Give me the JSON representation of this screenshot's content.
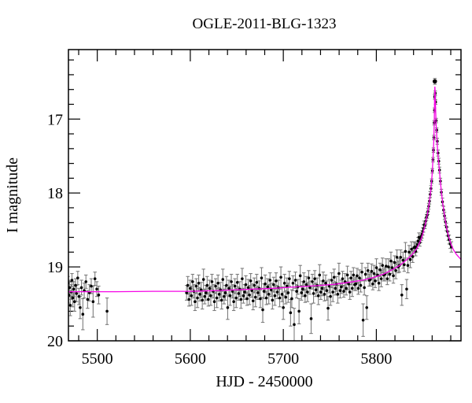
{
  "figure": {
    "background": "#ffffff",
    "title": "OGLE-2011-BLG-1323"
  },
  "chart_data": {
    "type": "scatter",
    "title": "OGLE-2011-BLG-1323",
    "xlabel": "HJD - 2450000",
    "ylabel": "I magnitude",
    "xlim": [
      5469,
      5891
    ],
    "ylim": [
      20.0,
      16.06
    ],
    "y_axis_inverted": true,
    "grid": false,
    "legend": "none",
    "x_major_ticks": [
      5500,
      5600,
      5700,
      5800
    ],
    "x_minor_step": 20,
    "y_major_ticks": [
      17,
      18,
      19,
      20
    ],
    "y_minor_step": 0.2,
    "colors": {
      "frame": "#000000",
      "data_points": "#000000",
      "error_bars": "#7d7d7d",
      "model_curve": "#f606e6"
    },
    "peak": {
      "t": 5862.9,
      "mag": 16.49
    },
    "baseline_mag": 19.33,
    "model_curve": [
      [
        5469,
        19.335
      ],
      [
        5520,
        19.335
      ],
      [
        5560,
        19.33
      ],
      [
        5600,
        19.33
      ],
      [
        5630,
        19.32
      ],
      [
        5660,
        19.305
      ],
      [
        5690,
        19.29
      ],
      [
        5715,
        19.27
      ],
      [
        5735,
        19.255
      ],
      [
        5755,
        19.235
      ],
      [
        5770,
        19.21
      ],
      [
        5785,
        19.18
      ],
      [
        5798,
        19.14
      ],
      [
        5808,
        19.095
      ],
      [
        5817,
        19.04
      ],
      [
        5825,
        18.98
      ],
      [
        5832,
        18.91
      ],
      [
        5838,
        18.84
      ],
      [
        5843,
        18.76
      ],
      [
        5847,
        18.66
      ],
      [
        5850,
        18.55
      ],
      [
        5853,
        18.4
      ],
      [
        5855,
        18.28
      ],
      [
        5857,
        18.12
      ],
      [
        5858.5,
        17.97
      ],
      [
        5860,
        17.75
      ],
      [
        5861,
        17.52
      ],
      [
        5861.8,
        17.28
      ],
      [
        5862.3,
        17.0
      ],
      [
        5862.6,
        16.75
      ],
      [
        5862.9,
        16.56
      ],
      [
        5863.2,
        16.62
      ],
      [
        5863.6,
        16.82
      ],
      [
        5864.2,
        17.05
      ],
      [
        5865,
        17.25
      ],
      [
        5866,
        17.45
      ],
      [
        5867.5,
        17.65
      ],
      [
        5869,
        17.87
      ],
      [
        5870.5,
        18.05
      ],
      [
        5872,
        18.19
      ],
      [
        5874,
        18.36
      ],
      [
        5876,
        18.5
      ],
      [
        5878,
        18.6
      ],
      [
        5880.5,
        18.7
      ],
      [
        5883,
        18.77
      ],
      [
        5886,
        18.83
      ],
      [
        5891,
        18.9
      ]
    ],
    "points": [
      [
        5467.0,
        19.3,
        0.1
      ],
      [
        5467.8,
        19.45,
        0.12
      ],
      [
        5468.5,
        19.22,
        0.09
      ],
      [
        5469.3,
        19.38,
        0.11
      ],
      [
        5470.1,
        19.28,
        0.1
      ],
      [
        5471.0,
        19.52,
        0.14
      ],
      [
        5471.9,
        19.34,
        0.1
      ],
      [
        5472.8,
        19.18,
        0.09
      ],
      [
        5473.7,
        19.42,
        0.12
      ],
      [
        5474.6,
        19.3,
        0.1
      ],
      [
        5475.6,
        19.47,
        0.13
      ],
      [
        5476.6,
        19.25,
        0.09
      ],
      [
        5477.7,
        19.36,
        0.11
      ],
      [
        5479.0,
        19.15,
        0.09
      ],
      [
        5480.3,
        19.4,
        0.11
      ],
      [
        5481.6,
        19.55,
        0.15
      ],
      [
        5483.0,
        19.28,
        0.1
      ],
      [
        5484.5,
        19.64,
        0.21
      ],
      [
        5486.0,
        19.32,
        0.1
      ],
      [
        5487.8,
        19.2,
        0.09
      ],
      [
        5489.6,
        19.44,
        0.12
      ],
      [
        5491.5,
        19.35,
        0.11
      ],
      [
        5493.5,
        19.26,
        0.1
      ],
      [
        5495.5,
        19.47,
        0.21
      ],
      [
        5497.5,
        19.16,
        0.09
      ],
      [
        5499.5,
        19.3,
        0.1
      ],
      [
        5501.5,
        19.38,
        0.12
      ],
      [
        5510.5,
        19.6,
        0.18
      ],
      [
        5596.0,
        19.35,
        0.1
      ],
      [
        5597.3,
        19.25,
        0.12
      ],
      [
        5598.6,
        19.44,
        0.09
      ],
      [
        5599.9,
        19.29,
        0.11
      ],
      [
        5601.2,
        19.39,
        0.13
      ],
      [
        5602.5,
        19.2,
        0.1
      ],
      [
        5603.8,
        19.33,
        0.09
      ],
      [
        5605.1,
        19.47,
        0.12
      ],
      [
        5606.4,
        19.26,
        0.1
      ],
      [
        5607.7,
        19.42,
        0.13
      ],
      [
        5609.0,
        19.22,
        0.11
      ],
      [
        5610.3,
        19.37,
        0.09
      ],
      [
        5611.6,
        19.31,
        0.1
      ],
      [
        5612.9,
        19.45,
        0.12
      ],
      [
        5614.2,
        19.17,
        0.14
      ],
      [
        5615.5,
        19.4,
        0.1
      ],
      [
        5616.8,
        19.35,
        0.1
      ],
      [
        5618.1,
        19.25,
        0.12
      ],
      [
        5619.4,
        19.44,
        0.09
      ],
      [
        5620.7,
        19.29,
        0.11
      ],
      [
        5622.0,
        19.39,
        0.13
      ],
      [
        5623.3,
        19.2,
        0.1
      ],
      [
        5624.6,
        19.33,
        0.09
      ],
      [
        5625.9,
        19.47,
        0.12
      ],
      [
        5627.2,
        19.26,
        0.1
      ],
      [
        5628.5,
        19.42,
        0.13
      ],
      [
        5629.8,
        19.22,
        0.11
      ],
      [
        5631.1,
        19.37,
        0.09
      ],
      [
        5632.4,
        19.31,
        0.1
      ],
      [
        5633.7,
        19.45,
        0.12
      ],
      [
        5635.0,
        19.17,
        0.14
      ],
      [
        5636.3,
        19.4,
        0.1
      ],
      [
        5637.6,
        19.35,
        0.1
      ],
      [
        5638.9,
        19.25,
        0.12
      ],
      [
        5640.2,
        19.55,
        0.16
      ],
      [
        5641.5,
        19.29,
        0.11
      ],
      [
        5642.8,
        19.39,
        0.13
      ],
      [
        5644.1,
        19.2,
        0.1
      ],
      [
        5645.4,
        19.33,
        0.09
      ],
      [
        5646.7,
        19.47,
        0.12
      ],
      [
        5648.0,
        19.26,
        0.1
      ],
      [
        5649.3,
        19.42,
        0.13
      ],
      [
        5650.6,
        19.21,
        0.11
      ],
      [
        5651.9,
        19.36,
        0.09
      ],
      [
        5653.2,
        19.3,
        0.1
      ],
      [
        5654.5,
        19.44,
        0.12
      ],
      [
        5655.8,
        19.16,
        0.14
      ],
      [
        5657.1,
        19.39,
        0.1
      ],
      [
        5658.4,
        19.34,
        0.1
      ],
      [
        5659.7,
        19.24,
        0.12
      ],
      [
        5661.0,
        19.43,
        0.09
      ],
      [
        5662.3,
        19.28,
        0.11
      ],
      [
        5663.6,
        19.38,
        0.13
      ],
      [
        5664.9,
        19.19,
        0.1
      ],
      [
        5666.2,
        19.32,
        0.09
      ],
      [
        5667.5,
        19.46,
        0.12
      ],
      [
        5668.8,
        19.25,
        0.1
      ],
      [
        5670.1,
        19.41,
        0.13
      ],
      [
        5671.4,
        19.21,
        0.11
      ],
      [
        5672.7,
        19.35,
        0.09
      ],
      [
        5674.0,
        19.29,
        0.1
      ],
      [
        5675.3,
        19.43,
        0.12
      ],
      [
        5676.6,
        19.15,
        0.14
      ],
      [
        5677.9,
        19.58,
        0.17
      ],
      [
        5679.2,
        19.33,
        0.1
      ],
      [
        5680.5,
        19.23,
        0.12
      ],
      [
        5681.8,
        19.42,
        0.09
      ],
      [
        5683.1,
        19.27,
        0.11
      ],
      [
        5684.4,
        19.37,
        0.13
      ],
      [
        5685.7,
        19.18,
        0.1
      ],
      [
        5687.0,
        19.31,
        0.09
      ],
      [
        5688.3,
        19.45,
        0.12
      ],
      [
        5689.6,
        19.24,
        0.1
      ],
      [
        5690.9,
        19.39,
        0.13
      ],
      [
        5692.2,
        19.19,
        0.11
      ],
      [
        5693.5,
        19.34,
        0.09
      ],
      [
        5694.8,
        19.28,
        0.1
      ],
      [
        5696.1,
        19.42,
        0.12
      ],
      [
        5697.4,
        19.14,
        0.14
      ],
      [
        5698.7,
        19.37,
        0.1
      ],
      [
        5700.0,
        19.55,
        0.16
      ],
      [
        5701.3,
        19.22,
        0.12
      ],
      [
        5702.6,
        19.41,
        0.09
      ],
      [
        5703.9,
        19.26,
        0.11
      ],
      [
        5705.2,
        19.35,
        0.13
      ],
      [
        5706.5,
        19.16,
        0.1
      ],
      [
        5707.8,
        19.62,
        0.18
      ],
      [
        5709.1,
        19.43,
        0.12
      ],
      [
        5710.4,
        19.22,
        0.1
      ],
      [
        5711.7,
        19.78,
        0.22
      ],
      [
        5713.0,
        19.18,
        0.11
      ],
      [
        5714.3,
        19.33,
        0.09
      ],
      [
        5715.6,
        19.27,
        0.1
      ],
      [
        5716.9,
        19.6,
        0.17
      ],
      [
        5718.2,
        19.12,
        0.14
      ],
      [
        5719.5,
        19.35,
        0.1
      ],
      [
        5720.8,
        19.3,
        0.1
      ],
      [
        5722.1,
        19.2,
        0.12
      ],
      [
        5723.4,
        19.39,
        0.09
      ],
      [
        5724.7,
        19.24,
        0.11
      ],
      [
        5726.0,
        19.34,
        0.13
      ],
      [
        5727.3,
        19.15,
        0.1
      ],
      [
        5728.6,
        19.28,
        0.09
      ],
      [
        5729.9,
        19.7,
        0.2
      ],
      [
        5731.2,
        19.2,
        0.1
      ],
      [
        5732.5,
        19.36,
        0.13
      ],
      [
        5733.8,
        19.16,
        0.11
      ],
      [
        5735.1,
        19.31,
        0.09
      ],
      [
        5736.4,
        19.25,
        0.1
      ],
      [
        5737.7,
        19.39,
        0.12
      ],
      [
        5739.0,
        19.11,
        0.14
      ],
      [
        5740.3,
        19.34,
        0.1
      ],
      [
        5741.6,
        19.29,
        0.1
      ],
      [
        5742.9,
        19.19,
        0.12
      ],
      [
        5744.2,
        19.37,
        0.09
      ],
      [
        5745.5,
        19.22,
        0.11
      ],
      [
        5746.8,
        19.32,
        0.13
      ],
      [
        5748.1,
        19.56,
        0.16
      ],
      [
        5749.4,
        19.26,
        0.09
      ],
      [
        5750.7,
        19.4,
        0.12
      ],
      [
        5752.0,
        19.18,
        0.1
      ],
      [
        5753.3,
        19.34,
        0.13
      ],
      [
        5754.6,
        19.14,
        0.11
      ],
      [
        5755.9,
        19.29,
        0.09
      ],
      [
        5757.2,
        19.23,
        0.1
      ],
      [
        5758.5,
        19.37,
        0.12
      ],
      [
        5759.8,
        19.09,
        0.14
      ],
      [
        5761.1,
        19.32,
        0.1
      ],
      [
        5762.4,
        19.27,
        0.09
      ],
      [
        5763.7,
        19.16,
        0.1
      ],
      [
        5765.0,
        19.33,
        0.08
      ],
      [
        5766.3,
        19.2,
        0.11
      ],
      [
        5767.6,
        19.29,
        0.09
      ],
      [
        5768.9,
        19.11,
        0.12
      ],
      [
        5770.2,
        19.23,
        0.08
      ],
      [
        5771.5,
        19.34,
        0.1
      ],
      [
        5772.8,
        19.15,
        0.09
      ],
      [
        5774.1,
        19.29,
        0.11
      ],
      [
        5775.4,
        19.11,
        0.1
      ],
      [
        5776.7,
        19.24,
        0.08
      ],
      [
        5778.0,
        19.23,
        0.09
      ],
      [
        5779.3,
        19.12,
        0.1
      ],
      [
        5780.6,
        19.29,
        0.08
      ],
      [
        5781.9,
        19.15,
        0.11
      ],
      [
        5783.2,
        19.25,
        0.09
      ],
      [
        5784.5,
        19.07,
        0.12
      ],
      [
        5785.8,
        19.72,
        0.22
      ],
      [
        5787.1,
        19.28,
        0.1
      ],
      [
        5788.4,
        19.1,
        0.09
      ],
      [
        5789.7,
        19.55,
        0.16
      ],
      [
        5791.0,
        19.05,
        0.1
      ],
      [
        5792.3,
        19.18,
        0.08
      ],
      [
        5793.6,
        19.17,
        0.09
      ],
      [
        5794.9,
        19.06,
        0.1
      ],
      [
        5796.2,
        19.23,
        0.08
      ],
      [
        5797.5,
        19.09,
        0.11
      ],
      [
        5798.8,
        19.19,
        0.09
      ],
      [
        5800.1,
        19.01,
        0.12
      ],
      [
        5801.4,
        19.11,
        0.08
      ],
      [
        5802.7,
        19.22,
        0.1
      ],
      [
        5804.0,
        19.04,
        0.09
      ],
      [
        5805.3,
        19.16,
        0.11
      ],
      [
        5806.6,
        18.98,
        0.1
      ],
      [
        5807.9,
        19.11,
        0.08
      ],
      [
        5809.2,
        19.1,
        0.09
      ],
      [
        5810.5,
        18.99,
        0.1
      ],
      [
        5811.8,
        19.16,
        0.08
      ],
      [
        5813.1,
        19.0,
        0.11
      ],
      [
        5814.4,
        19.1,
        0.09
      ],
      [
        5815.7,
        18.92,
        0.12
      ],
      [
        5817.0,
        19.01,
        0.08
      ],
      [
        5818.3,
        19.12,
        0.1
      ],
      [
        5819.6,
        18.94,
        0.09
      ],
      [
        5820.9,
        19.05,
        0.11
      ],
      [
        5822.2,
        18.87,
        0.1
      ],
      [
        5823.5,
        19.0,
        0.08
      ],
      [
        5824.8,
        18.98,
        0.09
      ],
      [
        5826.1,
        18.87,
        0.1
      ],
      [
        5827.4,
        19.38,
        0.14
      ],
      [
        5828.7,
        18.91,
        0.11
      ],
      [
        5830.0,
        18.97,
        0.09
      ],
      [
        5831.3,
        18.79,
        0.12
      ],
      [
        5832.6,
        19.3,
        0.13
      ],
      [
        5833.9,
        18.98,
        0.1
      ],
      [
        5835.2,
        18.8,
        0.09
      ],
      [
        5836.5,
        18.9,
        0.11
      ],
      [
        5837.8,
        18.76,
        0.1
      ],
      [
        5839.1,
        18.86,
        0.08
      ],
      [
        5840.4,
        18.74,
        0.08
      ],
      [
        5841.5,
        18.73,
        0.06
      ],
      [
        5842.3,
        18.79,
        0.06
      ],
      [
        5843.1,
        18.74,
        0.06
      ],
      [
        5844.0,
        18.7,
        0.05
      ],
      [
        5844.9,
        18.65,
        0.05
      ],
      [
        5845.8,
        18.6,
        0.06
      ],
      [
        5846.7,
        18.67,
        0.05
      ],
      [
        5847.5,
        18.62,
        0.05
      ],
      [
        5848.3,
        18.59,
        0.05
      ],
      [
        5849.1,
        18.56,
        0.05
      ],
      [
        5849.9,
        18.52,
        0.05
      ],
      [
        5850.7,
        18.48,
        0.05
      ],
      [
        5851.5,
        18.43,
        0.05
      ],
      [
        5852.3,
        18.44,
        0.04
      ],
      [
        5853.1,
        18.38,
        0.04
      ],
      [
        5853.9,
        18.33,
        0.04
      ],
      [
        5854.7,
        18.3,
        0.04
      ],
      [
        5855.5,
        18.25,
        0.04
      ],
      [
        5856.3,
        18.18,
        0.04
      ],
      [
        5857.1,
        18.11,
        0.04
      ],
      [
        5857.9,
        18.02,
        0.04
      ],
      [
        5858.7,
        17.94,
        0.04
      ],
      [
        5859.5,
        17.84,
        0.03
      ],
      [
        5860.2,
        17.7,
        0.03
      ],
      [
        5860.9,
        17.55,
        0.03
      ],
      [
        5861.4,
        17.42,
        0.03
      ],
      [
        5861.9,
        17.25,
        0.03
      ],
      [
        5862.2,
        17.05,
        0.03
      ],
      [
        5862.5,
        16.88,
        0.03
      ],
      [
        5862.7,
        16.7,
        0.03
      ],
      [
        5862.9,
        16.49,
        0.04
      ],
      [
        5863.3,
        16.65,
        0.03
      ],
      [
        5863.7,
        16.77,
        0.03
      ],
      [
        5864.3,
        17.02,
        0.03
      ],
      [
        5864.9,
        17.15,
        0.03
      ],
      [
        5865.5,
        17.3,
        0.04
      ],
      [
        5866.3,
        17.46,
        0.04
      ],
      [
        5867.1,
        17.57,
        0.04
      ],
      [
        5867.9,
        17.69,
        0.04
      ],
      [
        5868.9,
        17.84,
        0.04
      ],
      [
        5869.9,
        17.99,
        0.04
      ],
      [
        5871.1,
        18.12,
        0.05
      ],
      [
        5872.3,
        18.23,
        0.05
      ],
      [
        5873.3,
        18.31,
        0.05
      ],
      [
        5874.3,
        18.39,
        0.05
      ],
      [
        5875.3,
        18.46,
        0.05
      ],
      [
        5876.3,
        18.52,
        0.06
      ],
      [
        5877.3,
        18.58,
        0.06
      ],
      [
        5878.3,
        18.63,
        0.06
      ],
      [
        5879.5,
        18.69,
        0.06
      ],
      [
        5880.7,
        18.73,
        0.07
      ]
    ]
  }
}
